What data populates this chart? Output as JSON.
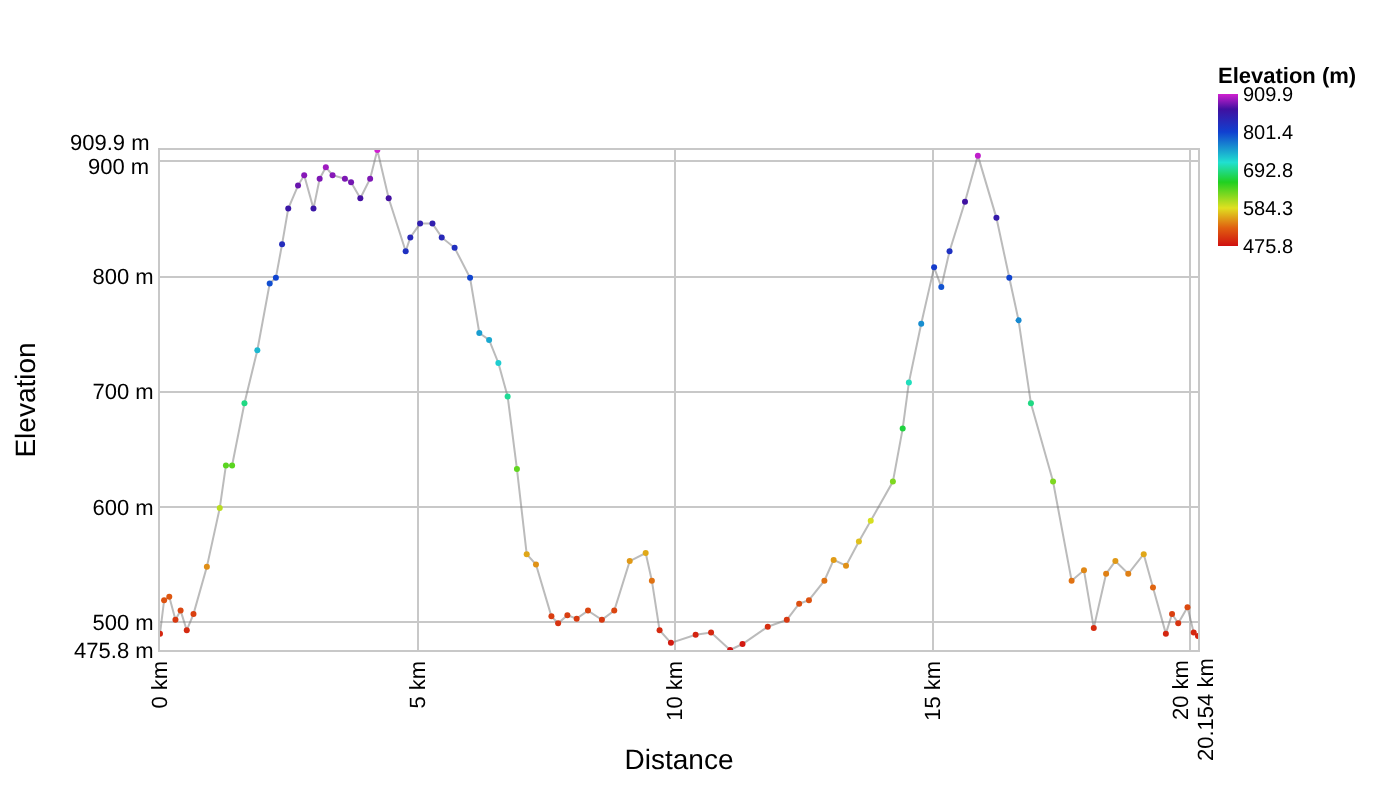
{
  "chart_data": {
    "type": "line",
    "xlabel": "Distance",
    "ylabel": "Elevation",
    "clabel": "Elevation (m)",
    "x": [
      0,
      0.08,
      0.18,
      0.3,
      0.4,
      0.52,
      0.65,
      0.91,
      1.16,
      1.28,
      1.4,
      1.64,
      1.89,
      2.13,
      2.25,
      2.37,
      2.49,
      2.68,
      2.8,
      2.98,
      3.1,
      3.22,
      3.35,
      3.59,
      3.71,
      3.89,
      4.08,
      4.22,
      4.44,
      4.77,
      4.86,
      5.05,
      5.29,
      5.47,
      5.72,
      6.02,
      6.2,
      6.39,
      6.57,
      6.75,
      6.93,
      7.12,
      7.3,
      7.6,
      7.73,
      7.91,
      8.09,
      8.31,
      8.58,
      8.82,
      9.12,
      9.43,
      9.55,
      9.7,
      9.92,
      10.4,
      10.7,
      11.07,
      11.31,
      11.8,
      12.17,
      12.41,
      12.6,
      12.9,
      13.08,
      13.32,
      13.57,
      13.8,
      14.23,
      14.42,
      14.54,
      14.78,
      15.03,
      15.17,
      15.33,
      15.63,
      15.88,
      16.24,
      16.49,
      16.67,
      16.91,
      17.34,
      17.7,
      17.94,
      18.13,
      18.37,
      18.55,
      18.8,
      19.1,
      19.28,
      19.53,
      19.65,
      19.77,
      19.95,
      20.07,
      20.154
    ],
    "values": [
      490,
      519,
      522,
      502,
      510,
      493,
      507,
      548,
      599,
      636,
      636,
      690,
      736,
      794,
      799,
      828,
      859,
      879,
      888,
      859,
      885,
      895,
      888,
      885,
      882,
      868,
      885,
      909.9,
      868,
      822,
      834,
      846,
      846,
      834,
      825,
      799,
      751,
      745,
      725,
      696,
      633,
      559,
      550,
      505,
      499,
      506,
      503,
      510,
      502,
      510,
      553,
      560,
      536,
      493,
      482,
      489,
      491,
      475.8,
      481,
      496,
      502,
      516,
      519,
      536,
      554,
      549,
      570,
      588,
      622,
      668,
      708,
      759,
      808,
      791,
      822,
      865,
      905,
      851,
      799,
      762,
      690,
      622,
      536,
      545,
      495,
      542,
      553,
      542,
      559,
      530,
      490,
      507,
      499,
      513,
      491,
      488
    ],
    "clim": [
      475.8,
      909.9
    ],
    "cticks": [
      909.9,
      801.4,
      692.8,
      584.3,
      475.8
    ],
    "xlim": [
      0,
      20.154
    ],
    "xticks": [
      {
        "value": 0,
        "label": "0 km"
      },
      {
        "value": 5,
        "label": "5 km"
      },
      {
        "value": 10,
        "label": "10 km"
      },
      {
        "value": 15,
        "label": "15 km"
      },
      {
        "value": 20,
        "label": "20 km"
      },
      {
        "value": 20.154,
        "label": "20.154 km"
      }
    ],
    "ylim": [
      475.8,
      909.9
    ],
    "yticks": [
      {
        "value": 475.8,
        "label": "475.8 m"
      },
      {
        "value": 500,
        "label": "500 m"
      },
      {
        "value": 600,
        "label": "600 m"
      },
      {
        "value": 700,
        "label": "700 m"
      },
      {
        "value": 800,
        "label": "800 m"
      },
      {
        "value": 900,
        "label": "900 m"
      },
      {
        "value": 909.9,
        "label": "909.9 m"
      }
    ],
    "grid": true,
    "marker": "circle"
  }
}
